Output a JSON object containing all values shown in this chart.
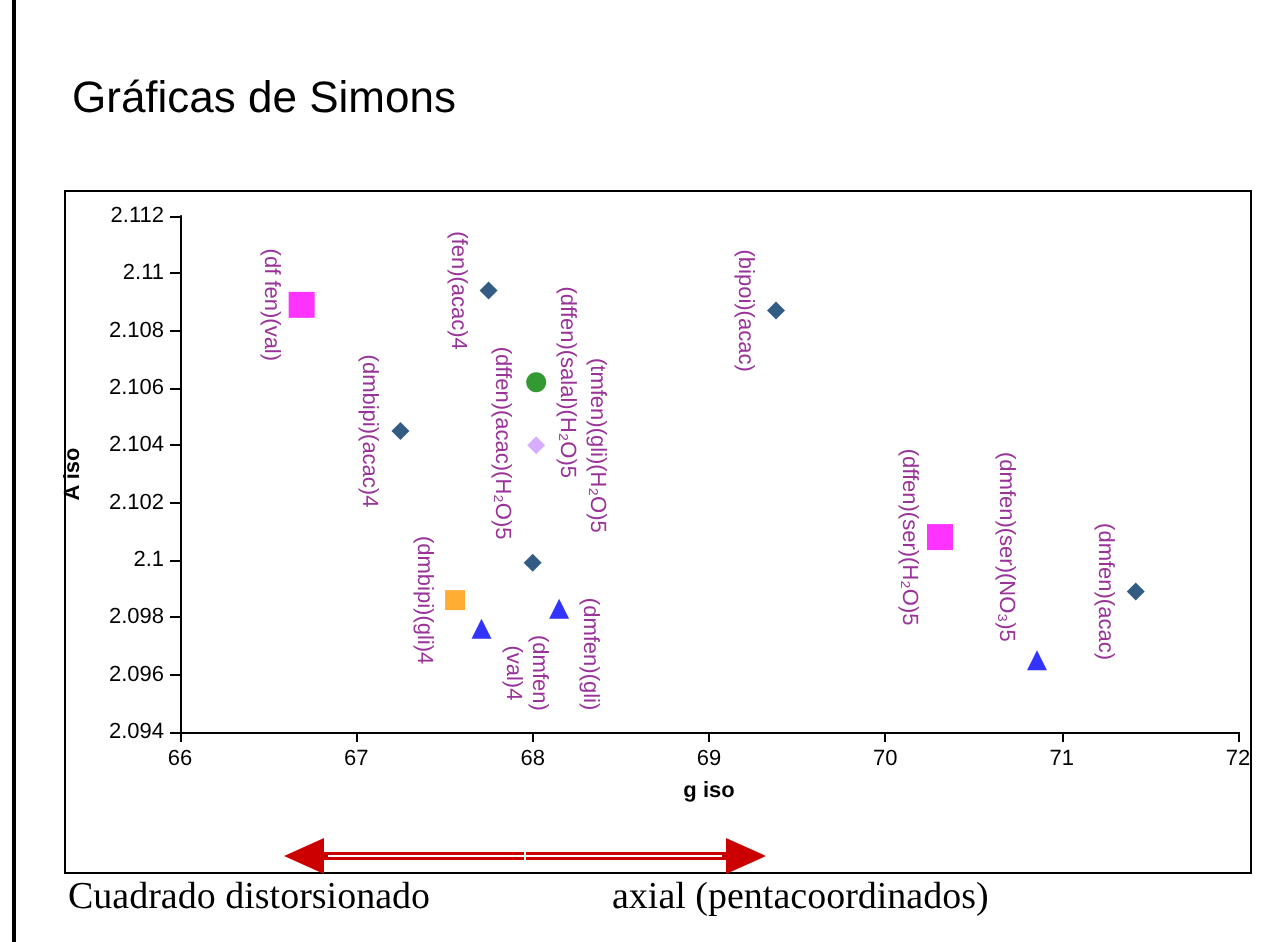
{
  "chart_data": {
    "type": "scatter",
    "title": "Gráficas de Simons",
    "xlabel": "g iso",
    "ylabel": "A iso",
    "xlim": [
      66,
      72
    ],
    "xticks": [
      66,
      67,
      68,
      69,
      70,
      71,
      72
    ],
    "ylim": [
      2.094,
      2.112
    ],
    "yticks": [
      2.094,
      2.096,
      2.098,
      2.1,
      2.102,
      2.104,
      2.106,
      2.108,
      2.11,
      2.112
    ],
    "grid": false,
    "series": [
      {
        "color": "#003366",
        "marker": "diamond",
        "x": [
          67.75,
          67.25,
          68.0,
          69.38,
          71.42
        ],
        "values": [
          2.1094,
          2.1045,
          2.0999,
          2.1087,
          2.0989
        ]
      },
      {
        "color": "#ff00ff",
        "marker": "square",
        "x": [
          66.69,
          70.31
        ],
        "values": [
          2.1089,
          2.1008
        ]
      },
      {
        "color": "#0000ff",
        "marker": "triangle",
        "x": [
          67.71,
          68.15,
          70.86
        ],
        "values": [
          2.0976,
          2.0983,
          2.0965
        ]
      },
      {
        "color": "#008000",
        "marker": "circle",
        "x": [
          68.02
        ],
        "values": [
          2.1062
        ]
      },
      {
        "color": "#cc99ff",
        "marker": "diamond",
        "x": [
          68.02
        ],
        "values": [
          2.104
        ]
      },
      {
        "color": "#ff9900",
        "marker": "square",
        "x": [
          67.56
        ],
        "values": [
          2.0986
        ]
      }
    ],
    "annotations": [
      {
        "text": "(df fen)(val)",
        "x": 66.69,
        "y": 2.1089
      },
      {
        "text": "(fen)(acac)4",
        "x": 67.75,
        "y": 2.1094
      },
      {
        "text": "(dffen)(salal)(H₂O)5",
        "x": 68.02,
        "y": 2.1062
      },
      {
        "text": "(tmfen)(gli)(H₂O)5",
        "x": 68.02,
        "y": 2.104
      },
      {
        "text": "(dmbipi)(acac)4",
        "x": 67.25,
        "y": 2.1045
      },
      {
        "text": "(dffen)(acac)(H₂O)5",
        "x": 68.0,
        "y": 2.0999
      },
      {
        "text": "(dmbipi)(gli)4",
        "x": 67.56,
        "y": 2.0986
      },
      {
        "text": "(dmfen)(val)4",
        "x": 67.71,
        "y": 2.0976
      },
      {
        "text": "(dmfen)(gli)",
        "x": 68.15,
        "y": 2.0983
      },
      {
        "text": "(bipoi)(acac)",
        "x": 69.38,
        "y": 2.1087
      },
      {
        "text": "(dffen)(ser)(H₂O)5",
        "x": 70.31,
        "y": 2.1008
      },
      {
        "text": "(dmfen)(ser)(NO₃)5",
        "x": 70.86,
        "y": 2.0965
      },
      {
        "text": "(dmfen)(acac)",
        "x": 71.42,
        "y": 2.0989
      },
      "Cuadrado distorsionado",
      "axial (pentacoordinados)"
    ]
  }
}
